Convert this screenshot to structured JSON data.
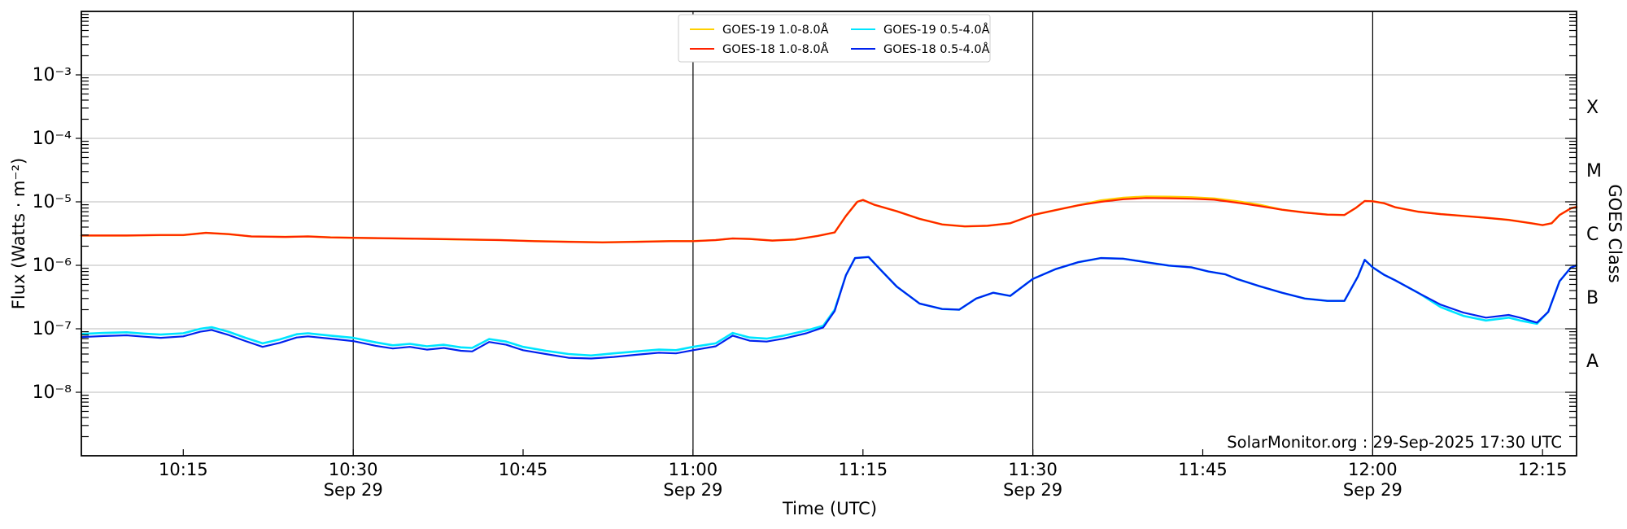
{
  "figure": {
    "watermark": "SolarMonitor.org : 29-Sep-2025 17:30 UTC"
  },
  "chart_data": {
    "type": "line",
    "title": "",
    "xlabel": "Time (UTC)",
    "ylabel": "Flux (Watts · m⁻²)",
    "ylabel_right": "GOES Class",
    "x_unit": "minutes after 10:00 UTC, 29-Sep-2025",
    "x_range_minutes": [
      6,
      138
    ],
    "y_range": [
      1e-09,
      0.01
    ],
    "y_scale": "log",
    "grid": "horizontal-decades",
    "legend_position": "top-center",
    "x_ticks": [
      {
        "t": 15,
        "label": "10:15",
        "sublabel": ""
      },
      {
        "t": 30,
        "label": "10:30",
        "sublabel": "Sep 29"
      },
      {
        "t": 45,
        "label": "10:45",
        "sublabel": ""
      },
      {
        "t": 60,
        "label": "11:00",
        "sublabel": "Sep 29"
      },
      {
        "t": 75,
        "label": "11:15",
        "sublabel": ""
      },
      {
        "t": 90,
        "label": "11:30",
        "sublabel": "Sep 29"
      },
      {
        "t": 105,
        "label": "11:45",
        "sublabel": ""
      },
      {
        "t": 120,
        "label": "12:00",
        "sublabel": "Sep 29"
      },
      {
        "t": 135,
        "label": "12:15",
        "sublabel": ""
      }
    ],
    "y_ticks": [
      {
        "value": 0.001,
        "label": "10⁻³"
      },
      {
        "value": 0.0001,
        "label": "10⁻⁴"
      },
      {
        "value": 1e-05,
        "label": "10⁻⁵"
      },
      {
        "value": 1e-06,
        "label": "10⁻⁶"
      },
      {
        "value": 1e-07,
        "label": "10⁻⁷"
      },
      {
        "value": 1e-08,
        "label": "10⁻⁸"
      }
    ],
    "goes_classes": [
      {
        "label": "X",
        "flux_mid": 0.000316
      },
      {
        "label": "M",
        "flux_mid": 3.16e-05
      },
      {
        "label": "C",
        "flux_mid": 3.16e-06
      },
      {
        "label": "B",
        "flux_mid": 3.16e-07
      },
      {
        "label": "A",
        "flux_mid": 3.16e-08
      }
    ],
    "vertical_lines_minutes": [
      30,
      60,
      90,
      120
    ],
    "series": [
      {
        "name": "GOES-19 1.0-8.0Å",
        "color": "#ffd000",
        "width": 2.6,
        "t_min": [
          6,
          10,
          13,
          15,
          17,
          19,
          21,
          24,
          26,
          28,
          31,
          34,
          37,
          40,
          43,
          46,
          49,
          52,
          55,
          58,
          60,
          62,
          63.5,
          65,
          67,
          69,
          71,
          72.5,
          73.5,
          74.5,
          75,
          76,
          78,
          80,
          82,
          84,
          86,
          88,
          90,
          92,
          94,
          96,
          98,
          100,
          102,
          104,
          106,
          108,
          110,
          112,
          114,
          116,
          117.5,
          118.5,
          119.3,
          120,
          121,
          122,
          124,
          126,
          128,
          130,
          132,
          134,
          135,
          135.8,
          136.5,
          137.5,
          138
        ],
        "flux": [
          2.95e-06,
          2.95e-06,
          3e-06,
          3e-06,
          3.25e-06,
          3.1e-06,
          2.85e-06,
          2.8e-06,
          2.85e-06,
          2.75e-06,
          2.7e-06,
          2.65e-06,
          2.6e-06,
          2.55e-06,
          2.5e-06,
          2.4e-06,
          2.35e-06,
          2.3e-06,
          2.35e-06,
          2.4e-06,
          2.4e-06,
          2.5e-06,
          2.65e-06,
          2.6e-06,
          2.45e-06,
          2.55e-06,
          2.9e-06,
          3.3e-06,
          6e-06,
          1e-05,
          1.07e-05,
          9e-06,
          7.1e-06,
          5.4e-06,
          4.4e-06,
          4.1e-06,
          4.2e-06,
          4.6e-06,
          6.2e-06,
          7.4e-06,
          8.8e-06,
          1.05e-05,
          1.16e-05,
          1.21e-05,
          1.2e-05,
          1.18e-05,
          1.13e-05,
          1.02e-05,
          9e-06,
          7.5e-06,
          6.8e-06,
          6.3e-06,
          6.2e-06,
          8e-06,
          1.03e-05,
          1.02e-05,
          9.5e-06,
          8.2e-06,
          7e-06,
          6.4e-06,
          6e-06,
          5.6e-06,
          5.2e-06,
          4.6e-06,
          4.3e-06,
          4.6e-06,
          6.2e-06,
          7.9e-06,
          8.3e-06
        ]
      },
      {
        "name": "GOES-18 1.0-8.0Å",
        "color": "#ff2200",
        "width": 2.2,
        "t_min": [
          6,
          10,
          13,
          15,
          17,
          19,
          21,
          24,
          26,
          28,
          31,
          34,
          37,
          40,
          43,
          46,
          49,
          52,
          55,
          58,
          60,
          62,
          63.5,
          65,
          67,
          69,
          71,
          72.5,
          73.5,
          74.5,
          75,
          76,
          78,
          80,
          82,
          84,
          86,
          88,
          90,
          92,
          94,
          96,
          98,
          100,
          102,
          104,
          106,
          108,
          110,
          112,
          114,
          116,
          117.5,
          118.5,
          119.3,
          120,
          121,
          122,
          124,
          126,
          128,
          130,
          132,
          134,
          135,
          135.8,
          136.5,
          137.5,
          138
        ],
        "flux": [
          2.95e-06,
          2.95e-06,
          3e-06,
          3e-06,
          3.25e-06,
          3.1e-06,
          2.85e-06,
          2.8e-06,
          2.85e-06,
          2.75e-06,
          2.7e-06,
          2.65e-06,
          2.6e-06,
          2.55e-06,
          2.5e-06,
          2.4e-06,
          2.35e-06,
          2.3e-06,
          2.35e-06,
          2.4e-06,
          2.4e-06,
          2.5e-06,
          2.65e-06,
          2.6e-06,
          2.45e-06,
          2.55e-06,
          2.9e-06,
          3.3e-06,
          6e-06,
          1e-05,
          1.07e-05,
          9e-06,
          7.1e-06,
          5.4e-06,
          4.4e-06,
          4.1e-06,
          4.2e-06,
          4.6e-06,
          6.2e-06,
          7.4e-06,
          8.8e-06,
          1e-05,
          1.1e-05,
          1.15e-05,
          1.14e-05,
          1.12e-05,
          1.08e-05,
          9.7e-06,
          8.6e-06,
          7.5e-06,
          6.8e-06,
          6.3e-06,
          6.2e-06,
          8e-06,
          1.03e-05,
          1.02e-05,
          9.5e-06,
          8.2e-06,
          7e-06,
          6.4e-06,
          6e-06,
          5.6e-06,
          5.2e-06,
          4.6e-06,
          4.3e-06,
          4.6e-06,
          6.2e-06,
          7.9e-06,
          8.3e-06
        ]
      },
      {
        "name": "GOES-19 0.5-4.0Å",
        "color": "#00e5ff",
        "width": 2.6,
        "t_min": [
          6,
          8,
          10,
          11.5,
          13,
          15,
          16.5,
          17.5,
          19,
          20.5,
          22,
          23.5,
          25,
          26,
          28,
          30,
          32,
          33.5,
          35,
          36.5,
          38,
          39.5,
          40.5,
          42,
          43.5,
          45,
          47,
          49,
          51,
          53,
          55,
          57,
          58.5,
          60,
          62,
          63.5,
          65,
          66.5,
          68,
          70,
          71.5,
          72.5,
          73.5,
          74.3,
          75.5,
          76.5,
          78,
          80,
          82,
          83.5,
          85,
          86.5,
          88,
          90,
          92,
          94,
          96,
          98,
          100,
          102,
          104,
          105.5,
          107,
          108,
          110,
          112,
          114,
          116,
          117.5,
          118.7,
          119.3,
          120,
          121,
          122,
          124,
          126,
          128,
          130,
          132,
          133,
          134.5,
          135.5,
          136.5,
          137.5,
          138
        ],
        "flux": [
          8.3e-08,
          8.6e-08,
          8.8e-08,
          8.4e-08,
          8.1e-08,
          8.5e-08,
          1e-07,
          1.06e-07,
          9e-08,
          7.2e-08,
          5.9e-08,
          6.8e-08,
          8.2e-08,
          8.5e-08,
          7.8e-08,
          7.2e-08,
          6.1e-08,
          5.5e-08,
          5.8e-08,
          5.3e-08,
          5.6e-08,
          5.1e-08,
          5e-08,
          6.9e-08,
          6.3e-08,
          5.2e-08,
          4.5e-08,
          4e-08,
          3.8e-08,
          4.1e-08,
          4.4e-08,
          4.7e-08,
          4.6e-08,
          5.2e-08,
          5.9e-08,
          8.6e-08,
          7.3e-08,
          7e-08,
          7.8e-08,
          9.4e-08,
          1.12e-07,
          2e-07,
          7e-07,
          1.3e-06,
          1.35e-06,
          8.7e-07,
          4.6e-07,
          2.5e-07,
          2.05e-07,
          2e-07,
          3e-07,
          3.7e-07,
          3.3e-07,
          6.1e-07,
          8.7e-07,
          1.12e-06,
          1.3e-06,
          1.27e-06,
          1.12e-06,
          9.9e-07,
          9.3e-07,
          8e-07,
          7.2e-07,
          6.1e-07,
          4.7e-07,
          3.7e-07,
          3e-07,
          2.75e-07,
          2.75e-07,
          6.7e-07,
          1.22e-06,
          9.3e-07,
          7.1e-07,
          5.8e-07,
          3.7e-07,
          2.2e-07,
          1.6e-07,
          1.35e-07,
          1.5e-07,
          1.35e-07,
          1.2e-07,
          1.85e-07,
          5.6e-07,
          9.2e-07,
          1e-06
        ]
      },
      {
        "name": "GOES-18 0.5-4.0Å",
        "color": "#0022ee",
        "width": 2.2,
        "t_min": [
          6,
          8,
          10,
          11.5,
          13,
          15,
          16.5,
          17.5,
          19,
          20.5,
          22,
          23.5,
          25,
          26,
          28,
          30,
          32,
          33.5,
          35,
          36.5,
          38,
          39.5,
          40.5,
          42,
          43.5,
          45,
          47,
          49,
          51,
          53,
          55,
          57,
          58.5,
          60,
          62,
          63.5,
          65,
          66.5,
          68,
          70,
          71.5,
          72.5,
          73.5,
          74.3,
          75.5,
          76.5,
          78,
          80,
          82,
          83.5,
          85,
          86.5,
          88,
          90,
          92,
          94,
          96,
          98,
          100,
          102,
          104,
          105.5,
          107,
          108,
          110,
          112,
          114,
          116,
          117.5,
          118.7,
          119.3,
          120,
          121,
          122,
          124,
          126,
          128,
          130,
          132,
          133,
          134.5,
          135.5,
          136.5,
          137.5,
          138
        ],
        "flux": [
          7.4e-08,
          7.7e-08,
          7.9e-08,
          7.5e-08,
          7.2e-08,
          7.6e-08,
          9e-08,
          9.6e-08,
          8e-08,
          6.4e-08,
          5.2e-08,
          6e-08,
          7.3e-08,
          7.6e-08,
          7e-08,
          6.4e-08,
          5.4e-08,
          4.9e-08,
          5.2e-08,
          4.7e-08,
          5e-08,
          4.5e-08,
          4.4e-08,
          6.2e-08,
          5.6e-08,
          4.6e-08,
          4e-08,
          3.5e-08,
          3.4e-08,
          3.6e-08,
          3.9e-08,
          4.2e-08,
          4.1e-08,
          4.6e-08,
          5.3e-08,
          7.8e-08,
          6.5e-08,
          6.3e-08,
          7e-08,
          8.5e-08,
          1.05e-07,
          1.9e-07,
          7e-07,
          1.3e-06,
          1.35e-06,
          8.7e-07,
          4.6e-07,
          2.5e-07,
          2.05e-07,
          2e-07,
          3e-07,
          3.7e-07,
          3.3e-07,
          6.1e-07,
          8.7e-07,
          1.12e-06,
          1.3e-06,
          1.27e-06,
          1.12e-06,
          9.9e-07,
          9.3e-07,
          8e-07,
          7.2e-07,
          6.1e-07,
          4.7e-07,
          3.7e-07,
          3e-07,
          2.75e-07,
          2.75e-07,
          6.7e-07,
          1.22e-06,
          9.3e-07,
          7.1e-07,
          5.8e-07,
          3.7e-07,
          2.4e-07,
          1.8e-07,
          1.5e-07,
          1.65e-07,
          1.5e-07,
          1.25e-07,
          1.85e-07,
          5.6e-07,
          9.2e-07,
          1e-06
        ]
      }
    ]
  }
}
